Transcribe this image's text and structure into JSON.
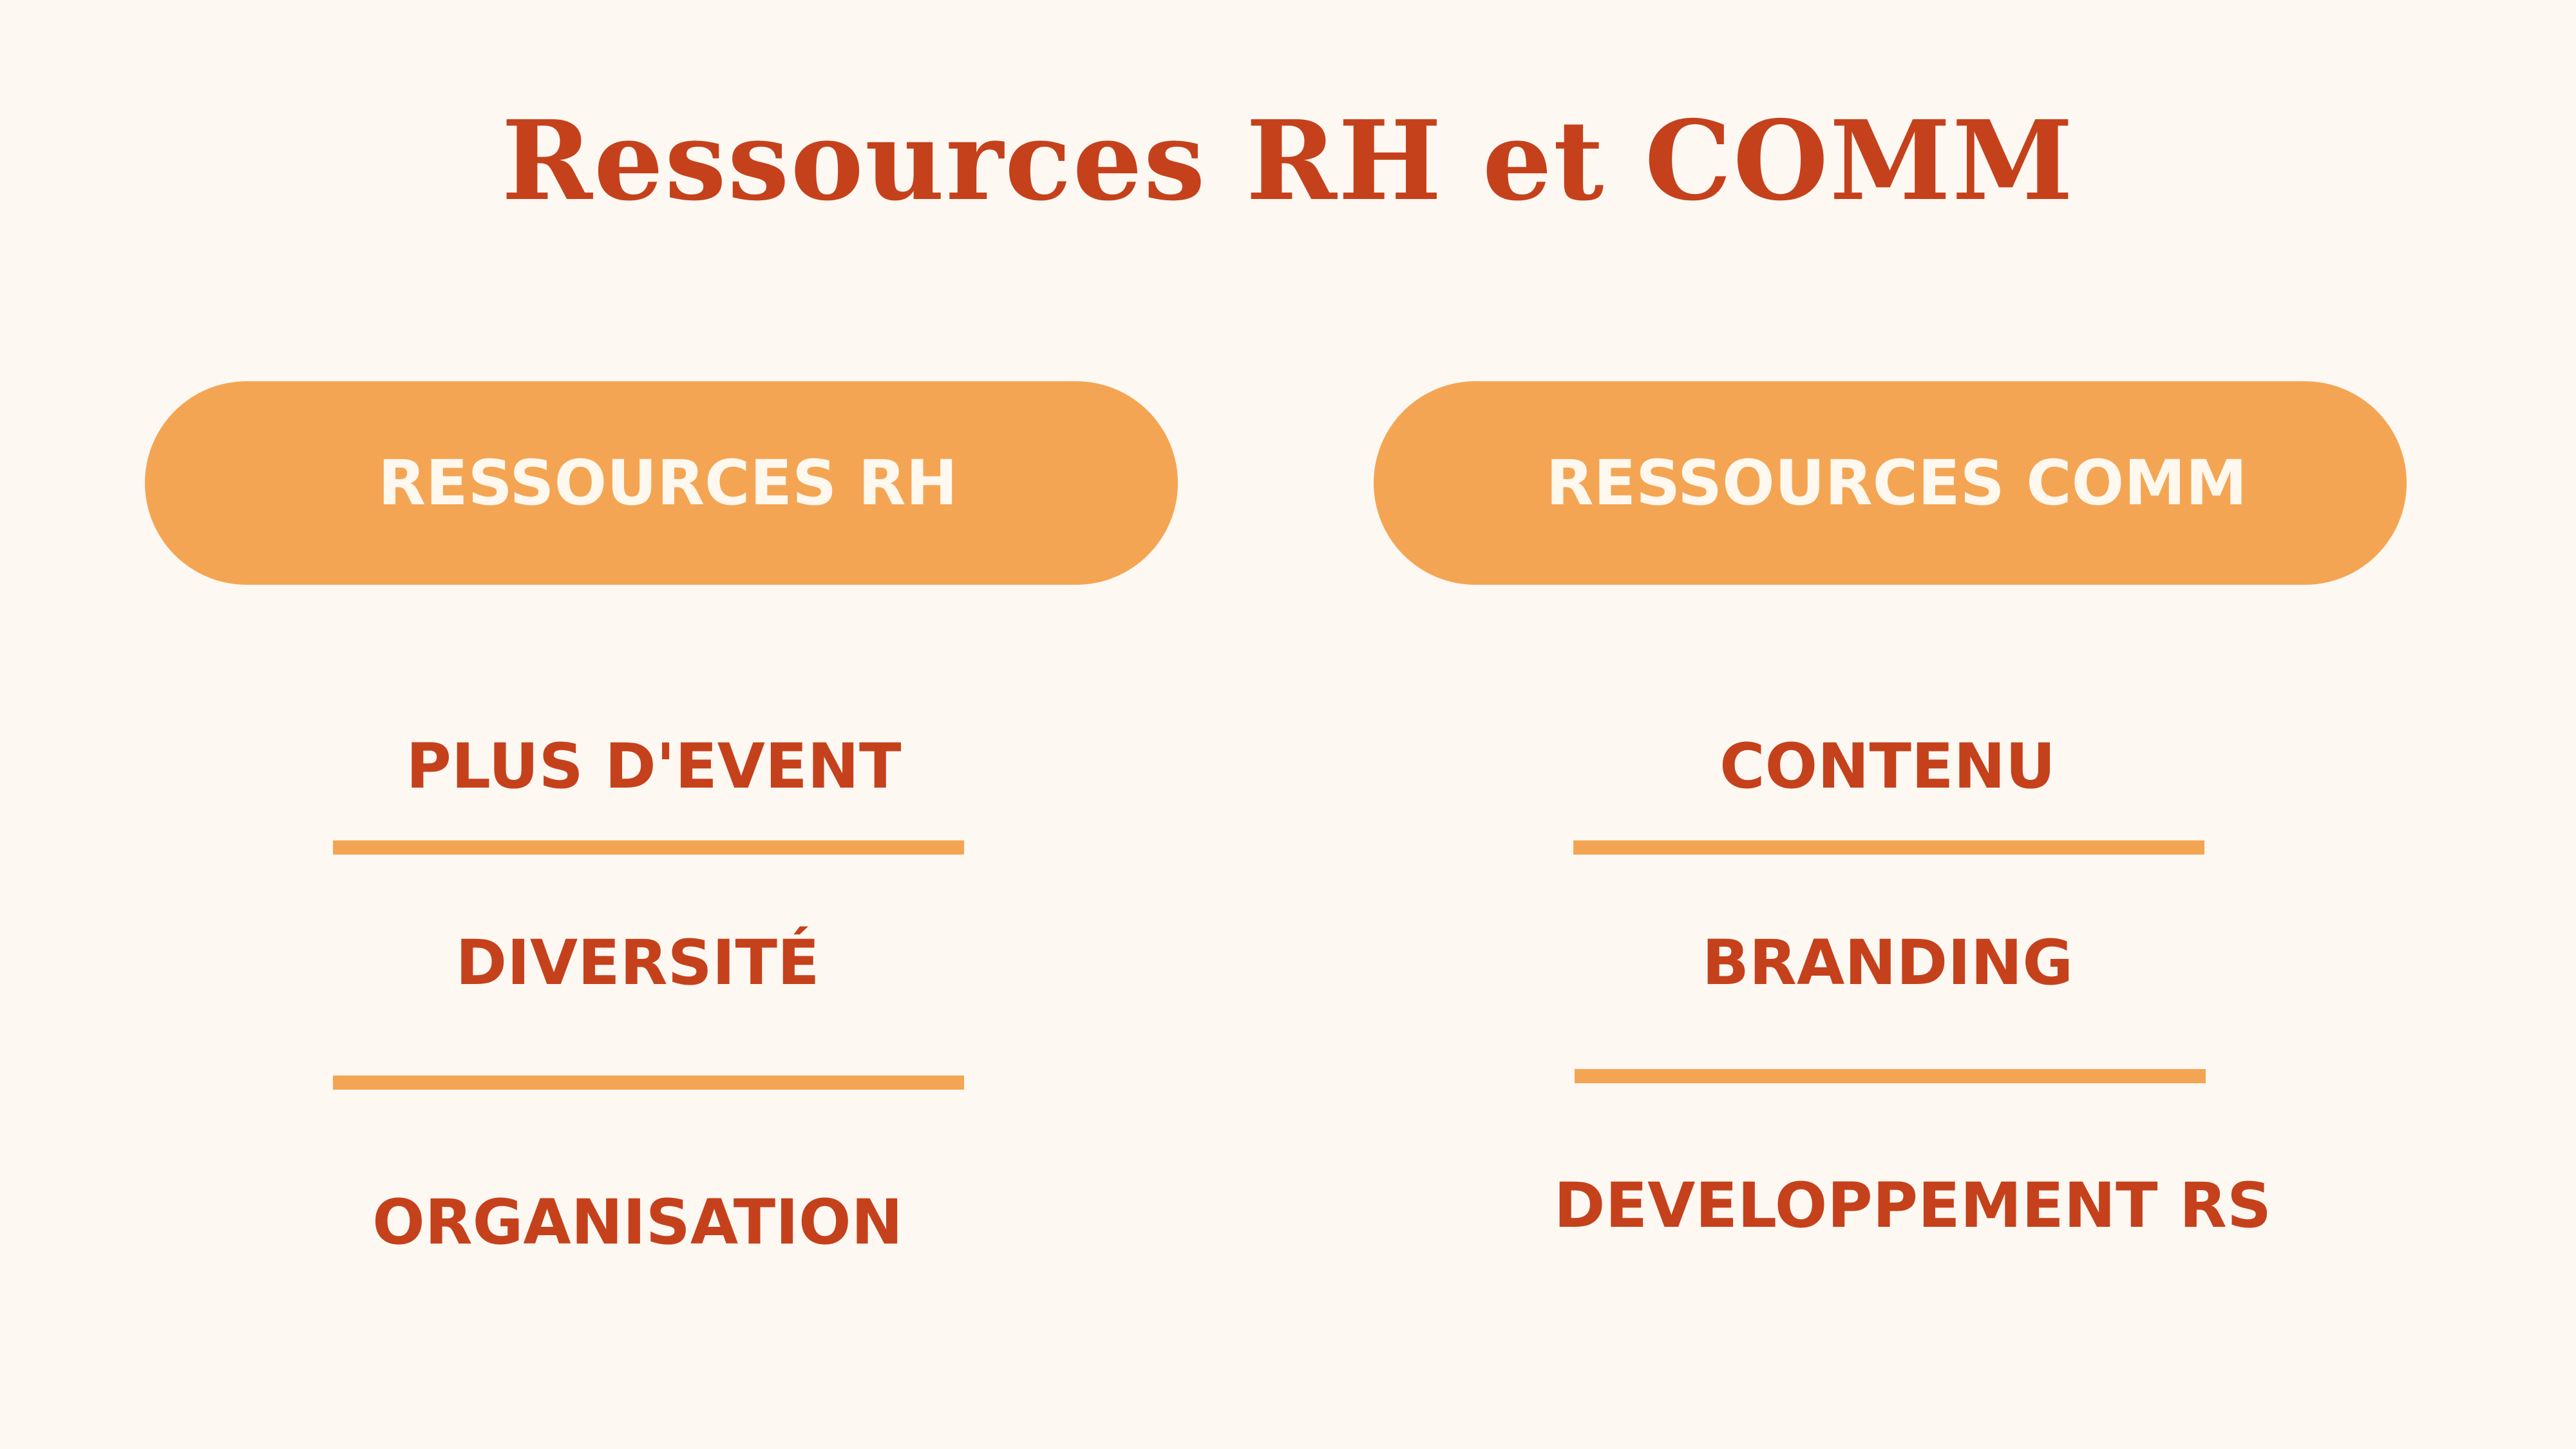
{
  "title": "Ressources RH et COMM",
  "colors": {
    "background": "#fef8f2",
    "accent_orange": "#f4a553",
    "text_red": "#c5411c",
    "pill_text": "#fff8ef"
  },
  "left_column": {
    "header": "RESSOURCES RH",
    "items": [
      "PLUS D'EVENT",
      "DIVERSITÉ",
      "ORGANISATION"
    ]
  },
  "right_column": {
    "header": "RESSOURCES COMM",
    "items": [
      "CONTENU",
      "BRANDING",
      "DEVELOPPEMENT RS"
    ]
  }
}
